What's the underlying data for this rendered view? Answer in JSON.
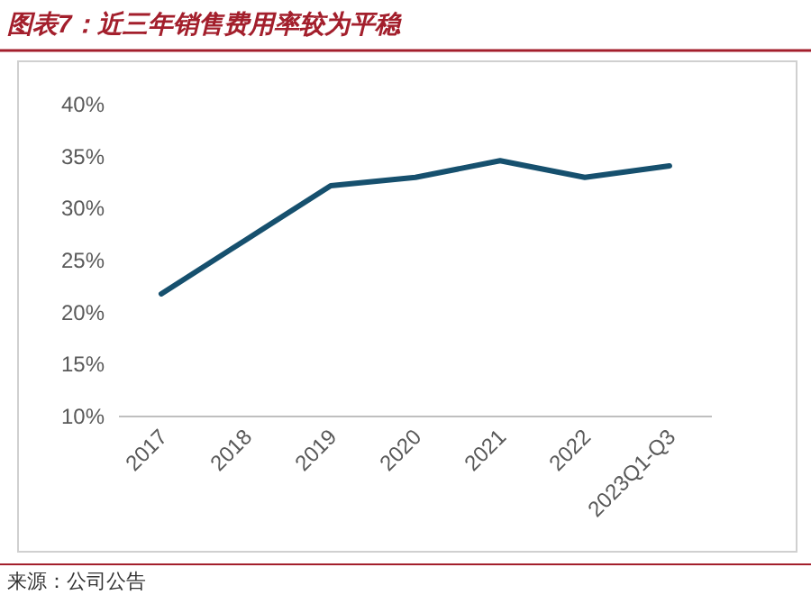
{
  "chart_data": {
    "type": "line",
    "title": "图表7：近三年销售费用率较为平稳",
    "categories": [
      "2017",
      "2018",
      "2019",
      "2020",
      "2021",
      "2022",
      "2023Q1-Q3"
    ],
    "series": [
      {
        "color": "#16506e",
        "values": [
          21.8,
          27,
          32.2,
          33,
          34.6,
          33,
          34.1
        ]
      }
    ],
    "ylim": [
      10,
      40
    ],
    "yticks": [
      {
        "value": 10,
        "label": "10%"
      },
      {
        "value": 15,
        "label": "15%"
      },
      {
        "value": 20,
        "label": "20%"
      },
      {
        "value": 25,
        "label": "25%"
      },
      {
        "value": 30,
        "label": "30%"
      },
      {
        "value": 35,
        "label": "35%"
      },
      {
        "value": 40,
        "label": "40%"
      }
    ],
    "grid": false,
    "annotations": [
      "来源：公司公告"
    ]
  }
}
